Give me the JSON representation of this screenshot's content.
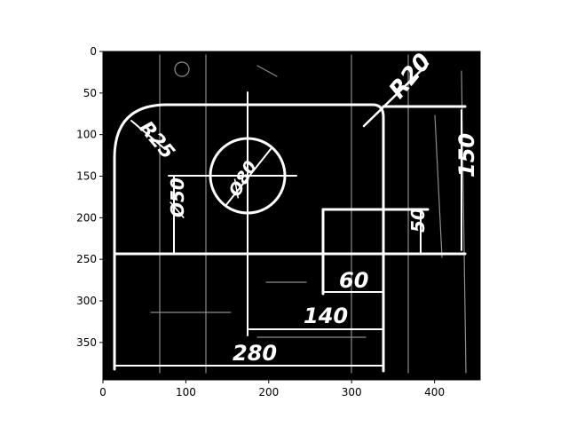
{
  "figure": {
    "axes": {
      "x_ticks": [
        "0",
        "100",
        "200",
        "300",
        "400"
      ],
      "y_ticks": [
        "0",
        "50",
        "100",
        "150",
        "200",
        "250",
        "300",
        "350"
      ],
      "x_range": [
        0,
        455
      ],
      "y_range": [
        395,
        0
      ],
      "colors": {
        "image_background": "#000000",
        "image_foreground": "#ffffff",
        "axis": "#000000"
      }
    },
    "drawing": {
      "dimension_labels": [
        "R20",
        "R25",
        "Ø80",
        "Ø50",
        "150",
        "50",
        "60",
        "140",
        "280"
      ]
    }
  }
}
